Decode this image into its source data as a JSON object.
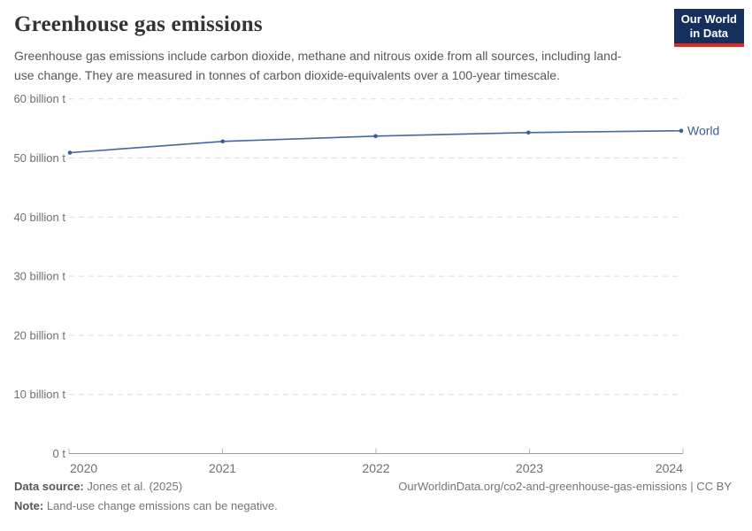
{
  "header": {
    "title": "Greenhouse gas emissions",
    "subtitle": "Greenhouse gas emissions include carbon dioxide, methane and nitrous oxide from all sources, including land-use change. They are measured in tonnes of carbon dioxide-equivalents over a 100-year timescale.",
    "logo": {
      "line1": "Our World",
      "line2": "in Data",
      "bg_color": "#15305c",
      "accent_color": "#dc2a20"
    }
  },
  "chart_data": {
    "type": "line",
    "title": "Greenhouse gas emissions",
    "x": [
      2020,
      2021,
      2022,
      2023,
      2024
    ],
    "series": [
      {
        "name": "World",
        "color": "#4666a3",
        "label_color": "#3d5c9e",
        "values": [
          50.9,
          52.8,
          53.7,
          54.3,
          54.6
        ]
      }
    ],
    "unit": "billion t",
    "xlabel": "",
    "ylabel": "",
    "ylim": [
      0,
      60
    ],
    "yticks": [
      {
        "value": 0,
        "label": "0 t"
      },
      {
        "value": 10,
        "label": "10 billion t"
      },
      {
        "value": 20,
        "label": "20 billion t"
      },
      {
        "value": 30,
        "label": "30 billion t"
      },
      {
        "value": 40,
        "label": "40 billion t"
      },
      {
        "value": 50,
        "label": "50 billion t"
      },
      {
        "value": 60,
        "label": "60 billion t"
      }
    ],
    "grid": "horizontal-dashed",
    "grid_color": "#dcdcdc",
    "axis_color": "#9c9c9c",
    "tick_label_color": "#6e6e6e",
    "legend": "end-of-line-label"
  },
  "footer": {
    "source_label": "Data source:",
    "source_value": " Jones et al. (2025)",
    "note_label": "Note:",
    "note_value": " Land-use change emissions can be negative.",
    "attribution": "OurWorldinData.org/co2-and-greenhouse-gas-emissions | CC BY"
  }
}
